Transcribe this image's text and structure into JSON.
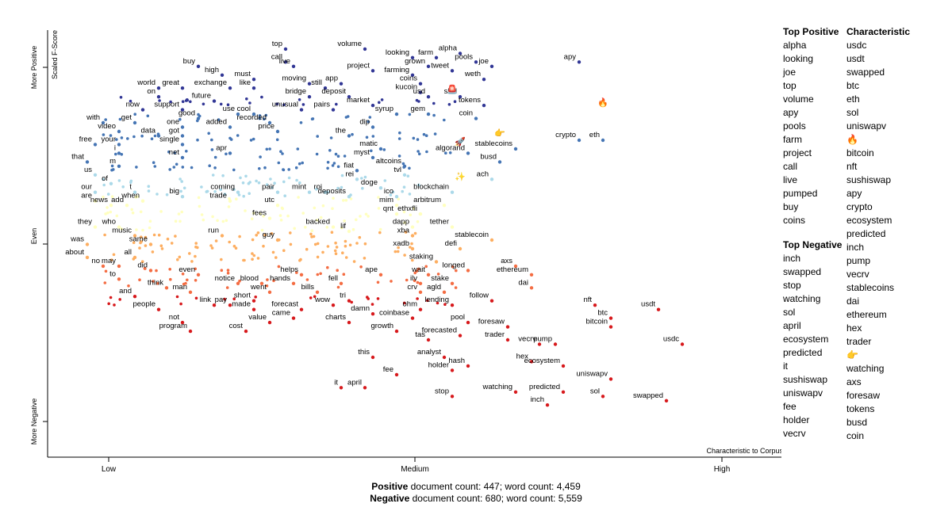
{
  "chart_data": {
    "type": "scatter",
    "xlabel": "Characteristic to Corpus",
    "ylabel": "Scaled F-Score",
    "x_ticks": [
      "Low",
      "Medium",
      "High"
    ],
    "y_ticks": [
      "More Negative",
      "Even",
      "More Positive"
    ],
    "x_range": [
      0,
      1
    ],
    "y_range": [
      0,
      1
    ],
    "colors": {
      "most_positive": "#313695",
      "positive": "#4575b4",
      "light_positive": "#abd9e9",
      "neutral": "#ffffbf",
      "light_negative": "#fdae61",
      "negative": "#f46d43",
      "most_negative": "#d7191c"
    },
    "labeled_points": [
      {
        "term": "top",
        "x": 0.3,
        "y": 0.94
      },
      {
        "term": "volume",
        "x": 0.4,
        "y": 0.94
      },
      {
        "term": "alpha",
        "x": 0.52,
        "y": 0.93
      },
      {
        "term": "call",
        "x": 0.3,
        "y": 0.91
      },
      {
        "term": "live",
        "x": 0.31,
        "y": 0.9
      },
      {
        "term": "looking",
        "x": 0.46,
        "y": 0.92
      },
      {
        "term": "farm",
        "x": 0.49,
        "y": 0.92
      },
      {
        "term": "pools",
        "x": 0.54,
        "y": 0.91
      },
      {
        "term": "joe",
        "x": 0.56,
        "y": 0.9
      },
      {
        "term": "apy",
        "x": 0.67,
        "y": 0.91
      },
      {
        "term": "buy",
        "x": 0.19,
        "y": 0.9
      },
      {
        "term": "grown",
        "x": 0.48,
        "y": 0.9
      },
      {
        "term": "tweet",
        "x": 0.51,
        "y": 0.89
      },
      {
        "term": "high",
        "x": 0.22,
        "y": 0.88
      },
      {
        "term": "project",
        "x": 0.41,
        "y": 0.89
      },
      {
        "term": "farming",
        "x": 0.46,
        "y": 0.88
      },
      {
        "term": "weth",
        "x": 0.55,
        "y": 0.87
      },
      {
        "term": "must",
        "x": 0.26,
        "y": 0.87
      },
      {
        "term": "coins",
        "x": 0.47,
        "y": 0.86
      },
      {
        "term": "world",
        "x": 0.14,
        "y": 0.85
      },
      {
        "term": "great",
        "x": 0.17,
        "y": 0.85
      },
      {
        "term": "moving",
        "x": 0.33,
        "y": 0.86
      },
      {
        "term": "app",
        "x": 0.37,
        "y": 0.86
      },
      {
        "term": "exchange",
        "x": 0.23,
        "y": 0.85
      },
      {
        "term": "like",
        "x": 0.26,
        "y": 0.85
      },
      {
        "term": "still",
        "x": 0.35,
        "y": 0.85
      },
      {
        "term": "kucoin",
        "x": 0.47,
        "y": 0.84
      },
      {
        "term": "on",
        "x": 0.14,
        "y": 0.83
      },
      {
        "term": "bridge",
        "x": 0.33,
        "y": 0.83
      },
      {
        "term": "deposit",
        "x": 0.38,
        "y": 0.83
      },
      {
        "term": "usd",
        "x": 0.48,
        "y": 0.83
      },
      {
        "term": "shill",
        "x": 0.52,
        "y": 0.83
      },
      {
        "term": "future",
        "x": 0.21,
        "y": 0.82
      },
      {
        "term": "market",
        "x": 0.41,
        "y": 0.81
      },
      {
        "term": "tokens",
        "x": 0.55,
        "y": 0.81
      },
      {
        "term": "now",
        "x": 0.12,
        "y": 0.8
      },
      {
        "term": "support",
        "x": 0.17,
        "y": 0.8
      },
      {
        "term": "use",
        "x": 0.24,
        "y": 0.79
      },
      {
        "term": "cool",
        "x": 0.26,
        "y": 0.79
      },
      {
        "term": "unusual",
        "x": 0.32,
        "y": 0.8
      },
      {
        "term": "pairs",
        "x": 0.36,
        "y": 0.8
      },
      {
        "term": "syrup",
        "x": 0.44,
        "y": 0.79
      },
      {
        "term": "gem",
        "x": 0.48,
        "y": 0.79
      },
      {
        "term": "good",
        "x": 0.19,
        "y": 0.78
      },
      {
        "term": "coin",
        "x": 0.54,
        "y": 0.78
      },
      {
        "term": "with",
        "x": 0.07,
        "y": 0.77
      },
      {
        "term": "get",
        "x": 0.11,
        "y": 0.77
      },
      {
        "term": "one",
        "x": 0.17,
        "y": 0.76
      },
      {
        "term": "recorded",
        "x": 0.28,
        "y": 0.77
      },
      {
        "term": "added",
        "x": 0.23,
        "y": 0.76
      },
      {
        "term": "price",
        "x": 0.29,
        "y": 0.75
      },
      {
        "term": "dip",
        "x": 0.41,
        "y": 0.76
      },
      {
        "term": "video",
        "x": 0.09,
        "y": 0.75
      },
      {
        "term": "data",
        "x": 0.14,
        "y": 0.74
      },
      {
        "term": "got",
        "x": 0.17,
        "y": 0.74
      },
      {
        "term": "the",
        "x": 0.38,
        "y": 0.74
      },
      {
        "term": "crypto",
        "x": 0.67,
        "y": 0.73
      },
      {
        "term": "eth",
        "x": 0.7,
        "y": 0.73
      },
      {
        "term": "free",
        "x": 0.06,
        "y": 0.72
      },
      {
        "term": "your",
        "x": 0.09,
        "y": 0.72
      },
      {
        "term": "single",
        "x": 0.17,
        "y": 0.72
      },
      {
        "term": "stablecoins",
        "x": 0.59,
        "y": 0.71
      },
      {
        "term": "matic",
        "x": 0.42,
        "y": 0.71
      },
      {
        "term": "i",
        "x": 0.09,
        "y": 0.7
      },
      {
        "term": "apr",
        "x": 0.23,
        "y": 0.7
      },
      {
        "term": "algorand",
        "x": 0.53,
        "y": 0.7
      },
      {
        "term": "net",
        "x": 0.17,
        "y": 0.69
      },
      {
        "term": "myst",
        "x": 0.41,
        "y": 0.69
      },
      {
        "term": "that",
        "x": 0.05,
        "y": 0.68
      },
      {
        "term": "altcoins",
        "x": 0.45,
        "y": 0.67
      },
      {
        "term": "busd",
        "x": 0.57,
        "y": 0.68
      },
      {
        "term": "m",
        "x": 0.09,
        "y": 0.67
      },
      {
        "term": "fiat",
        "x": 0.39,
        "y": 0.66
      },
      {
        "term": "tvl",
        "x": 0.45,
        "y": 0.65
      },
      {
        "term": "ach",
        "x": 0.56,
        "y": 0.64
      },
      {
        "term": "us",
        "x": 0.06,
        "y": 0.65
      },
      {
        "term": "rei",
        "x": 0.39,
        "y": 0.64
      },
      {
        "term": "of",
        "x": 0.08,
        "y": 0.63
      },
      {
        "term": "doge",
        "x": 0.42,
        "y": 0.62
      },
      {
        "term": "our",
        "x": 0.06,
        "y": 0.61
      },
      {
        "term": "t",
        "x": 0.11,
        "y": 0.61
      },
      {
        "term": "big",
        "x": 0.17,
        "y": 0.6
      },
      {
        "term": "coming",
        "x": 0.24,
        "y": 0.61
      },
      {
        "term": "pair",
        "x": 0.29,
        "y": 0.61
      },
      {
        "term": "mint",
        "x": 0.33,
        "y": 0.61
      },
      {
        "term": "roi",
        "x": 0.35,
        "y": 0.61
      },
      {
        "term": "deposits",
        "x": 0.38,
        "y": 0.6
      },
      {
        "term": "ico",
        "x": 0.44,
        "y": 0.6
      },
      {
        "term": "blockchain",
        "x": 0.51,
        "y": 0.61
      },
      {
        "term": "are",
        "x": 0.06,
        "y": 0.59
      },
      {
        "term": "news",
        "x": 0.08,
        "y": 0.58
      },
      {
        "term": "add",
        "x": 0.1,
        "y": 0.58
      },
      {
        "term": "when",
        "x": 0.12,
        "y": 0.59
      },
      {
        "term": "trade",
        "x": 0.23,
        "y": 0.59
      },
      {
        "term": "utc",
        "x": 0.29,
        "y": 0.58
      },
      {
        "term": "mim",
        "x": 0.44,
        "y": 0.58
      },
      {
        "term": "arbitrum",
        "x": 0.5,
        "y": 0.58
      },
      {
        "term": "qnt",
        "x": 0.44,
        "y": 0.56
      },
      {
        "term": "ethxfli",
        "x": 0.47,
        "y": 0.56
      },
      {
        "term": "fees",
        "x": 0.28,
        "y": 0.55
      },
      {
        "term": "they",
        "x": 0.06,
        "y": 0.53
      },
      {
        "term": "who",
        "x": 0.09,
        "y": 0.53
      },
      {
        "term": "backed",
        "x": 0.36,
        "y": 0.53
      },
      {
        "term": "lif",
        "x": 0.38,
        "y": 0.52
      },
      {
        "term": "dapp",
        "x": 0.46,
        "y": 0.53
      },
      {
        "term": "tether",
        "x": 0.51,
        "y": 0.53
      },
      {
        "term": "music",
        "x": 0.11,
        "y": 0.51
      },
      {
        "term": "run",
        "x": 0.22,
        "y": 0.51
      },
      {
        "term": "guy",
        "x": 0.29,
        "y": 0.5
      },
      {
        "term": "xba",
        "x": 0.46,
        "y": 0.51
      },
      {
        "term": "stablecoin",
        "x": 0.56,
        "y": 0.5
      },
      {
        "term": "was",
        "x": 0.05,
        "y": 0.49
      },
      {
        "term": "same",
        "x": 0.13,
        "y": 0.49
      },
      {
        "term": "xadb",
        "x": 0.46,
        "y": 0.48
      },
      {
        "term": "defi",
        "x": 0.52,
        "y": 0.48
      },
      {
        "term": "about",
        "x": 0.05,
        "y": 0.46
      },
      {
        "term": "all",
        "x": 0.11,
        "y": 0.46
      },
      {
        "term": "staking",
        "x": 0.49,
        "y": 0.45
      },
      {
        "term": "no",
        "x": 0.07,
        "y": 0.44
      },
      {
        "term": "may",
        "x": 0.09,
        "y": 0.44
      },
      {
        "term": "axs",
        "x": 0.59,
        "y": 0.44
      },
      {
        "term": "did",
        "x": 0.13,
        "y": 0.43
      },
      {
        "term": "longed",
        "x": 0.53,
        "y": 0.43
      },
      {
        "term": "ethereum",
        "x": 0.61,
        "y": 0.42
      },
      {
        "term": "even",
        "x": 0.19,
        "y": 0.42
      },
      {
        "term": "helps",
        "x": 0.32,
        "y": 0.42
      },
      {
        "term": "wait",
        "x": 0.48,
        "y": 0.42
      },
      {
        "term": "ape",
        "x": 0.42,
        "y": 0.42
      },
      {
        "term": "to",
        "x": 0.09,
        "y": 0.41
      },
      {
        "term": "notice",
        "x": 0.24,
        "y": 0.4
      },
      {
        "term": "blood",
        "x": 0.27,
        "y": 0.4
      },
      {
        "term": "hands",
        "x": 0.31,
        "y": 0.4
      },
      {
        "term": "fell",
        "x": 0.37,
        "y": 0.4
      },
      {
        "term": "ilv",
        "x": 0.47,
        "y": 0.4
      },
      {
        "term": "stake",
        "x": 0.51,
        "y": 0.4
      },
      {
        "term": "dai",
        "x": 0.61,
        "y": 0.39
      },
      {
        "term": "think",
        "x": 0.15,
        "y": 0.39
      },
      {
        "term": "man",
        "x": 0.18,
        "y": 0.38
      },
      {
        "term": "went",
        "x": 0.28,
        "y": 0.38
      },
      {
        "term": "bills",
        "x": 0.34,
        "y": 0.38
      },
      {
        "term": "crv",
        "x": 0.47,
        "y": 0.38
      },
      {
        "term": "agld",
        "x": 0.5,
        "y": 0.38
      },
      {
        "term": "and",
        "x": 0.11,
        "y": 0.37
      },
      {
        "term": "short",
        "x": 0.26,
        "y": 0.36
      },
      {
        "term": "tri",
        "x": 0.38,
        "y": 0.36
      },
      {
        "term": "follow",
        "x": 0.56,
        "y": 0.36
      },
      {
        "term": "people",
        "x": 0.14,
        "y": 0.34
      },
      {
        "term": "link",
        "x": 0.21,
        "y": 0.35
      },
      {
        "term": "pay",
        "x": 0.23,
        "y": 0.35
      },
      {
        "term": "made",
        "x": 0.26,
        "y": 0.34
      },
      {
        "term": "forecast",
        "x": 0.32,
        "y": 0.34
      },
      {
        "term": "wow",
        "x": 0.36,
        "y": 0.35
      },
      {
        "term": "ohm",
        "x": 0.47,
        "y": 0.34
      },
      {
        "term": "lending",
        "x": 0.51,
        "y": 0.35
      },
      {
        "term": "nft",
        "x": 0.69,
        "y": 0.35
      },
      {
        "term": "usdt",
        "x": 0.77,
        "y": 0.34
      },
      {
        "term": "came",
        "x": 0.31,
        "y": 0.32
      },
      {
        "term": "damn",
        "x": 0.41,
        "y": 0.33
      },
      {
        "term": "coinbase",
        "x": 0.46,
        "y": 0.32
      },
      {
        "term": "btc",
        "x": 0.71,
        "y": 0.32
      },
      {
        "term": "not",
        "x": 0.17,
        "y": 0.31
      },
      {
        "term": "value",
        "x": 0.28,
        "y": 0.31
      },
      {
        "term": "charts",
        "x": 0.38,
        "y": 0.31
      },
      {
        "term": "pool",
        "x": 0.53,
        "y": 0.31
      },
      {
        "term": "foresaw",
        "x": 0.58,
        "y": 0.3
      },
      {
        "term": "bitcoin",
        "x": 0.71,
        "y": 0.3
      },
      {
        "term": "program",
        "x": 0.18,
        "y": 0.29
      },
      {
        "term": "cost",
        "x": 0.25,
        "y": 0.29
      },
      {
        "term": "growth",
        "x": 0.44,
        "y": 0.29
      },
      {
        "term": "forecasted",
        "x": 0.52,
        "y": 0.28
      },
      {
        "term": "tas",
        "x": 0.48,
        "y": 0.27
      },
      {
        "term": "trader",
        "x": 0.58,
        "y": 0.27
      },
      {
        "term": "usdc",
        "x": 0.8,
        "y": 0.26
      },
      {
        "term": "vecrv",
        "x": 0.62,
        "y": 0.26
      },
      {
        "term": "pump",
        "x": 0.64,
        "y": 0.26
      },
      {
        "term": "this",
        "x": 0.41,
        "y": 0.23
      },
      {
        "term": "analyst",
        "x": 0.5,
        "y": 0.23
      },
      {
        "term": "hex",
        "x": 0.61,
        "y": 0.22
      },
      {
        "term": "hash",
        "x": 0.53,
        "y": 0.21
      },
      {
        "term": "ecosystem",
        "x": 0.65,
        "y": 0.21
      },
      {
        "term": "holder",
        "x": 0.51,
        "y": 0.2
      },
      {
        "term": "fee",
        "x": 0.44,
        "y": 0.19
      },
      {
        "term": "uniswapv",
        "x": 0.71,
        "y": 0.18
      },
      {
        "term": "it",
        "x": 0.37,
        "y": 0.16
      },
      {
        "term": "april",
        "x": 0.4,
        "y": 0.16
      },
      {
        "term": "watching",
        "x": 0.59,
        "y": 0.15
      },
      {
        "term": "predicted",
        "x": 0.65,
        "y": 0.15
      },
      {
        "term": "sol",
        "x": 0.7,
        "y": 0.14
      },
      {
        "term": "stop",
        "x": 0.51,
        "y": 0.14
      },
      {
        "term": "inch",
        "x": 0.63,
        "y": 0.12
      },
      {
        "term": "swapped",
        "x": 0.78,
        "y": 0.13
      }
    ],
    "emoji_points": [
      {
        "symbol": "🚨",
        "x": 0.51,
        "y": 0.84
      },
      {
        "symbol": "🔥",
        "x": 0.7,
        "y": 0.81
      },
      {
        "symbol": "🚀",
        "x": 0.52,
        "y": 0.72
      },
      {
        "symbol": "👉",
        "x": 0.57,
        "y": 0.74
      },
      {
        "symbol": "✨",
        "x": 0.52,
        "y": 0.64
      }
    ]
  },
  "legend": {
    "top_positive_title": "Top Positive",
    "top_positive": [
      "alpha",
      "looking",
      "joe",
      "top",
      "volume",
      "apy",
      "pools",
      "farm",
      "project",
      "call",
      "live",
      "pumped",
      "buy",
      "coins"
    ],
    "top_negative_title": "Top Negative",
    "top_negative": [
      "inch",
      "swapped",
      "stop",
      "watching",
      "sol",
      "april",
      "ecosystem",
      "predicted",
      "it",
      "sushiswap",
      "uniswapv",
      "fee",
      "holder",
      "vecrv"
    ],
    "characteristic_title": "Characteristic",
    "characteristic": [
      "usdc",
      "usdt",
      "swapped",
      "btc",
      "eth",
      "sol",
      "uniswapv",
      "🔥",
      "bitcoin",
      "nft",
      "sushiswap",
      "apy",
      "crypto",
      "ecosystem",
      "predicted",
      "inch",
      "pump",
      "vecrv",
      "stablecoins",
      "dai",
      "ethereum",
      "hex",
      "trader",
      "👉",
      "watching",
      "axs",
      "foresaw",
      "tokens",
      "busd",
      "coin"
    ]
  },
  "footer": {
    "pos_label": "Positive",
    "pos_text": "document count: 447; word count: 4,459",
    "neg_label": "Negative",
    "neg_text": "document count: 680; word count: 5,559"
  }
}
